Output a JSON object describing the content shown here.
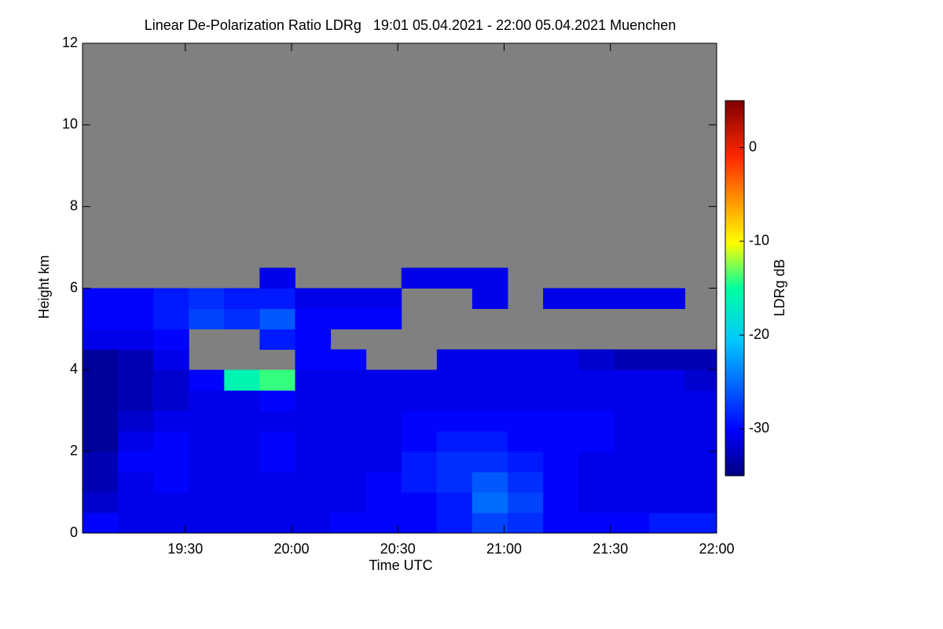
{
  "chart_data": {
    "type": "heatmap",
    "title": "Linear De-Polarization Ratio LDRg   19:01 05.04.2021 - 22:00 05.04.2021 Muenchen",
    "xlabel": "Time UTC",
    "ylabel": "Height km",
    "colorbar_label": "LDRg dB",
    "xlim": [
      19.0167,
      22.0
    ],
    "xticks": [
      {
        "value": 19.5,
        "label": "19:30"
      },
      {
        "value": 20.0,
        "label": "20:00"
      },
      {
        "value": 20.5,
        "label": "20:30"
      },
      {
        "value": 21.0,
        "label": "21:00"
      },
      {
        "value": 21.5,
        "label": "21:30"
      },
      {
        "value": 22.0,
        "label": "22:00"
      }
    ],
    "ylim": [
      0,
      12
    ],
    "yticks": [
      0,
      2,
      4,
      6,
      8,
      10,
      12
    ],
    "clim": [
      -35,
      5
    ],
    "cticks": [
      0,
      -10,
      -20,
      -30
    ],
    "colormap": "rainbow",
    "nodata_color": "#808080",
    "x": [
      19.1,
      19.2667,
      19.4333,
      19.6,
      19.7667,
      19.9333,
      20.1,
      20.2667,
      20.4333,
      20.6,
      20.7667,
      20.9333,
      21.1,
      21.2667,
      21.4333,
      21.6,
      21.7667,
      21.9333
    ],
    "y": [
      0.25,
      0.75,
      1.25,
      1.75,
      2.25,
      2.75,
      3.25,
      3.75,
      4.25,
      4.75,
      5.25,
      5.75,
      6.25,
      6.75,
      7.25,
      7.75,
      8.25,
      8.75,
      9.25,
      9.75,
      10.25,
      10.75,
      11.25,
      11.75
    ],
    "z": [
      [
        -30,
        -31,
        -31,
        -31,
        -31,
        -31,
        -31,
        -30,
        -30,
        -30,
        -29,
        -27,
        -28,
        -30,
        -30,
        -30,
        -29,
        -29
      ],
      [
        -32,
        -31,
        -31,
        -31,
        -31,
        -31,
        -31,
        -31,
        -30,
        -30,
        -29,
        -25,
        -27,
        -30,
        -31,
        -31,
        -31,
        -31
      ],
      [
        -33,
        -31,
        -30,
        -31,
        -31,
        -31,
        -31,
        -31,
        -30,
        -29,
        -28,
        -26,
        -28,
        -30,
        -31,
        -31,
        -31,
        -31
      ],
      [
        -33,
        -30,
        -30,
        -31,
        -31,
        -30,
        -31,
        -31,
        -31,
        -29,
        -28,
        -28,
        -29,
        -30,
        -31,
        -31,
        -31,
        -31
      ],
      [
        -34,
        -31,
        -30,
        -31,
        -31,
        -30,
        -31,
        -31,
        -31,
        -30,
        -29,
        -29,
        -30,
        -30,
        -30,
        -31,
        -31,
        -31
      ],
      [
        -34,
        -32,
        -31,
        -31,
        -31,
        -31,
        -31,
        -31,
        -31,
        -30,
        -30,
        -30,
        -30,
        -30,
        -30,
        -31,
        -31,
        -31
      ],
      [
        -34,
        -33,
        -32,
        -31,
        -31,
        -30,
        -31,
        -31,
        -31,
        -31,
        -31,
        -31,
        -31,
        -31,
        -31,
        -31,
        -31,
        -31
      ],
      [
        -34,
        -33,
        -32,
        -30,
        -16,
        -14,
        -31,
        -31,
        -31,
        -31,
        -31,
        -31,
        -31,
        -31,
        -31,
        -31,
        -31,
        -32
      ],
      [
        -34,
        -33,
        -31,
        null,
        null,
        null,
        -30,
        -30,
        null,
        null,
        -31,
        -31,
        -31,
        -31,
        -32,
        -33,
        -33,
        -33
      ],
      [
        -31,
        -31,
        -30,
        null,
        null,
        -29,
        -30,
        null,
        null,
        null,
        null,
        null,
        null,
        null,
        null,
        null,
        null,
        null
      ],
      [
        -30,
        -30,
        -29,
        -27,
        -28,
        -26,
        -30,
        -30,
        -30,
        null,
        null,
        null,
        null,
        null,
        null,
        null,
        null,
        null
      ],
      [
        -30,
        -30,
        -29,
        -28,
        -29,
        -29,
        -31,
        -31,
        -31,
        null,
        null,
        -31,
        null,
        -31,
        -31,
        -31,
        -31,
        null
      ],
      [
        null,
        null,
        null,
        null,
        null,
        -31,
        null,
        null,
        null,
        -31,
        -31,
        -31,
        null,
        null,
        null,
        null,
        null,
        null
      ],
      [
        null,
        null,
        null,
        null,
        null,
        null,
        null,
        null,
        null,
        null,
        null,
        null,
        null,
        null,
        null,
        null,
        null,
        null
      ],
      [
        null,
        null,
        null,
        null,
        null,
        null,
        null,
        null,
        null,
        null,
        null,
        null,
        null,
        null,
        null,
        null,
        null,
        null
      ],
      [
        null,
        null,
        null,
        null,
        null,
        null,
        null,
        null,
        null,
        null,
        null,
        null,
        null,
        null,
        null,
        null,
        null,
        null
      ],
      [
        null,
        null,
        null,
        null,
        null,
        null,
        null,
        null,
        null,
        null,
        null,
        null,
        null,
        null,
        null,
        null,
        null,
        null
      ],
      [
        null,
        null,
        null,
        null,
        null,
        null,
        null,
        null,
        null,
        null,
        null,
        null,
        null,
        null,
        null,
        null,
        null,
        null
      ],
      [
        null,
        null,
        null,
        null,
        null,
        null,
        null,
        null,
        null,
        null,
        null,
        null,
        null,
        null,
        null,
        null,
        null,
        null
      ],
      [
        null,
        null,
        null,
        null,
        null,
        null,
        null,
        null,
        null,
        null,
        null,
        null,
        null,
        null,
        null,
        null,
        null,
        null
      ],
      [
        null,
        null,
        null,
        null,
        null,
        null,
        null,
        null,
        null,
        null,
        null,
        null,
        null,
        null,
        null,
        null,
        null,
        null
      ],
      [
        null,
        null,
        null,
        null,
        null,
        null,
        null,
        null,
        null,
        null,
        null,
        null,
        null,
        null,
        null,
        null,
        null,
        null
      ],
      [
        null,
        null,
        null,
        null,
        null,
        null,
        null,
        null,
        null,
        null,
        null,
        null,
        null,
        null,
        null,
        null,
        null,
        null
      ],
      [
        null,
        null,
        null,
        null,
        null,
        null,
        null,
        null,
        null,
        null,
        null,
        null,
        null,
        null,
        null,
        null,
        null,
        null
      ]
    ]
  }
}
